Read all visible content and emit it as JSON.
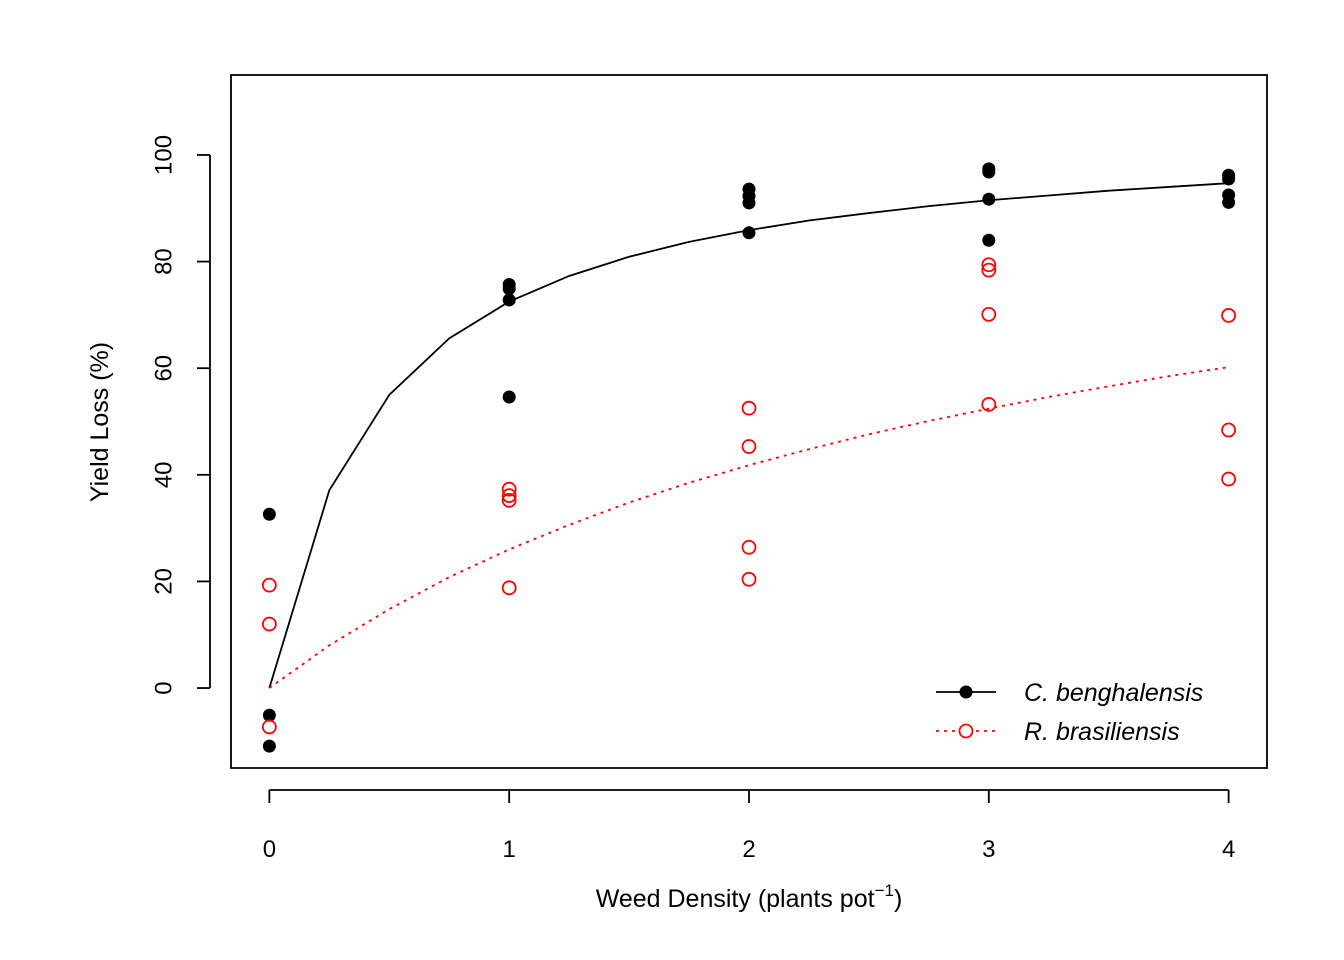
{
  "chart_data": {
    "type": "scatter",
    "title": "",
    "xlabel": "Weed Density (plants pot",
    "xlabel_sup": "−1",
    "xlabel_suffix": ")",
    "ylabel": "Yield Loss (%)",
    "xlim": [
      -0.16,
      4.16
    ],
    "ylim": [
      -15,
      115
    ],
    "xticks": [
      0,
      1,
      2,
      3,
      4
    ],
    "yticks": [
      0,
      20,
      40,
      60,
      80,
      100
    ],
    "grid": false,
    "legend_position": "bottom-right",
    "series": [
      {
        "name": "C. benghalensis",
        "color": "#000000",
        "marker": "filled-circle",
        "line_style": "solid",
        "points": [
          [
            0,
            32.6
          ],
          [
            0,
            -5.1
          ],
          [
            0,
            -10.9
          ],
          [
            1,
            75.7
          ],
          [
            1,
            74.9
          ],
          [
            1,
            72.8
          ],
          [
            1,
            54.6
          ],
          [
            2,
            93.6
          ],
          [
            2,
            92.3
          ],
          [
            2,
            91.0
          ],
          [
            2,
            85.4
          ],
          [
            3,
            97.4
          ],
          [
            3,
            96.8
          ],
          [
            3,
            91.7
          ],
          [
            3,
            84.0
          ],
          [
            4,
            96.2
          ],
          [
            4,
            95.5
          ],
          [
            4,
            92.5
          ],
          [
            4,
            91.1
          ]
        ],
        "fit": {
          "x": [
            0,
            0.25,
            0.5,
            0.75,
            1,
            1.25,
            1.5,
            1.75,
            2,
            2.25,
            2.5,
            2.75,
            3,
            3.25,
            3.5,
            3.75,
            4
          ],
          "y": [
            0,
            37.1,
            55.0,
            65.6,
            72.5,
            77.3,
            80.9,
            83.7,
            85.9,
            87.7,
            89.1,
            90.4,
            91.5,
            92.4,
            93.3,
            94.0,
            94.7
          ]
        }
      },
      {
        "name": "R. brasiliensis",
        "color": "#ff0000",
        "marker": "open-circle",
        "line_style": "dotted",
        "points": [
          [
            0,
            19.3
          ],
          [
            0,
            12.0
          ],
          [
            0,
            -7.3
          ],
          [
            1,
            37.3
          ],
          [
            1,
            36.1
          ],
          [
            1,
            35.2
          ],
          [
            1,
            18.8
          ],
          [
            2,
            52.5
          ],
          [
            2,
            45.3
          ],
          [
            2,
            26.4
          ],
          [
            2,
            20.4
          ],
          [
            3,
            79.4
          ],
          [
            3,
            78.4
          ],
          [
            3,
            70.1
          ],
          [
            3,
            53.2
          ],
          [
            4,
            69.9
          ],
          [
            4,
            48.4
          ],
          [
            4,
            39.2
          ]
        ],
        "fit": {
          "x": [
            0,
            0.25,
            0.5,
            0.75,
            1,
            1.25,
            1.5,
            1.75,
            2,
            2.25,
            2.5,
            2.75,
            3,
            3.25,
            3.5,
            3.75,
            4
          ],
          "y": [
            0,
            8.0,
            14.8,
            20.8,
            26.0,
            30.6,
            34.8,
            38.5,
            41.8,
            44.8,
            47.6,
            50.1,
            52.4,
            54.6,
            56.6,
            58.5,
            60.2
          ]
        }
      }
    ]
  }
}
